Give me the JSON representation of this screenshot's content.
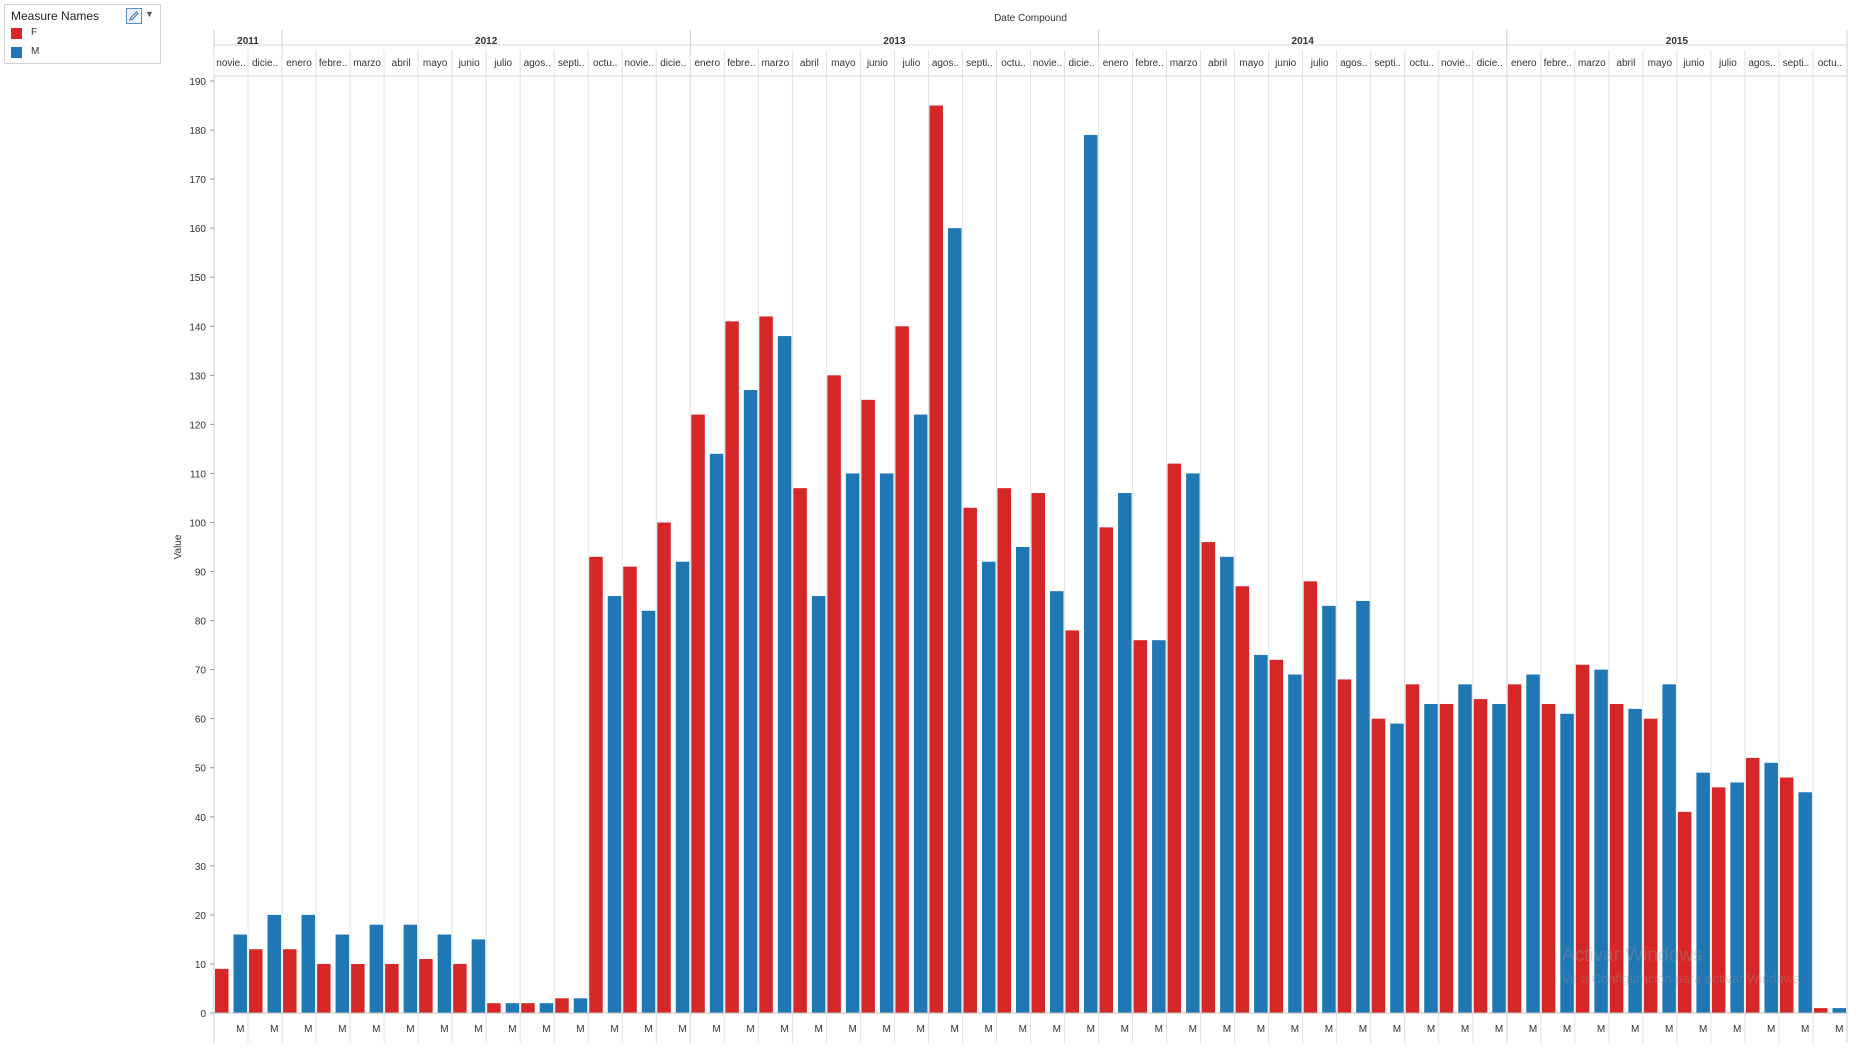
{
  "legend": {
    "title": "Measure Names",
    "items": [
      {
        "label": "F",
        "color": "#d62728"
      },
      {
        "label": "M",
        "color": "#1f77b4"
      }
    ]
  },
  "watermark": {
    "line1": "Activar Windows",
    "line2": "Ve a Configuración para activar Windows."
  },
  "chart_data": {
    "type": "bar",
    "title": "Date Compound",
    "ylabel": "Value",
    "xlabel": "",
    "ylim": [
      0,
      190
    ],
    "yticks": [
      0,
      10,
      20,
      30,
      40,
      50,
      60,
      70,
      80,
      90,
      100,
      110,
      120,
      130,
      140,
      150,
      160,
      170,
      180,
      190
    ],
    "grid": false,
    "legend_position": "top-left",
    "x_tick_label": "M",
    "years": [
      {
        "label": "2011",
        "months": 2
      },
      {
        "label": "2012",
        "months": 12
      },
      {
        "label": "2013",
        "months": 12
      },
      {
        "label": "2014",
        "months": 12
      },
      {
        "label": "2015",
        "months": 10
      }
    ],
    "categories": [
      "novie..",
      "dicie..",
      "enero",
      "febre..",
      "marzo",
      "abril",
      "mayo",
      "junio",
      "julio",
      "agos..",
      "septi..",
      "octu..",
      "novie..",
      "dicie..",
      "enero",
      "febre..",
      "marzo",
      "abril",
      "mayo",
      "junio",
      "julio",
      "agos..",
      "septi..",
      "octu..",
      "novie..",
      "dicie..",
      "enero",
      "febre..",
      "marzo",
      "abril",
      "mayo",
      "junio",
      "julio",
      "agos..",
      "septi..",
      "octu..",
      "novie..",
      "dicie..",
      "enero",
      "febre..",
      "marzo",
      "abril",
      "mayo",
      "junio",
      "julio",
      "agos..",
      "septi..",
      "octu.."
    ],
    "series": [
      {
        "name": "F",
        "color": "#d62728",
        "values": [
          9,
          13,
          13,
          10,
          10,
          10,
          11,
          10,
          2,
          2,
          3,
          93,
          91,
          100,
          122,
          141,
          142,
          107,
          130,
          125,
          140,
          185,
          103,
          107,
          106,
          78,
          99,
          76,
          112,
          96,
          87,
          72,
          88,
          68,
          60,
          67,
          63,
          64,
          67,
          63,
          71,
          63,
          60,
          41,
          46,
          52,
          48,
          1
        ]
      },
      {
        "name": "M",
        "color": "#1f77b4",
        "values": [
          16,
          20,
          20,
          16,
          18,
          18,
          16,
          15,
          2,
          2,
          3,
          85,
          82,
          92,
          114,
          127,
          138,
          85,
          110,
          110,
          122,
          160,
          92,
          95,
          86,
          179,
          106,
          76,
          110,
          93,
          73,
          69,
          83,
          84,
          59,
          63,
          67,
          63,
          69,
          61,
          70,
          62,
          67,
          49,
          47,
          51,
          45,
          1
        ]
      }
    ]
  }
}
